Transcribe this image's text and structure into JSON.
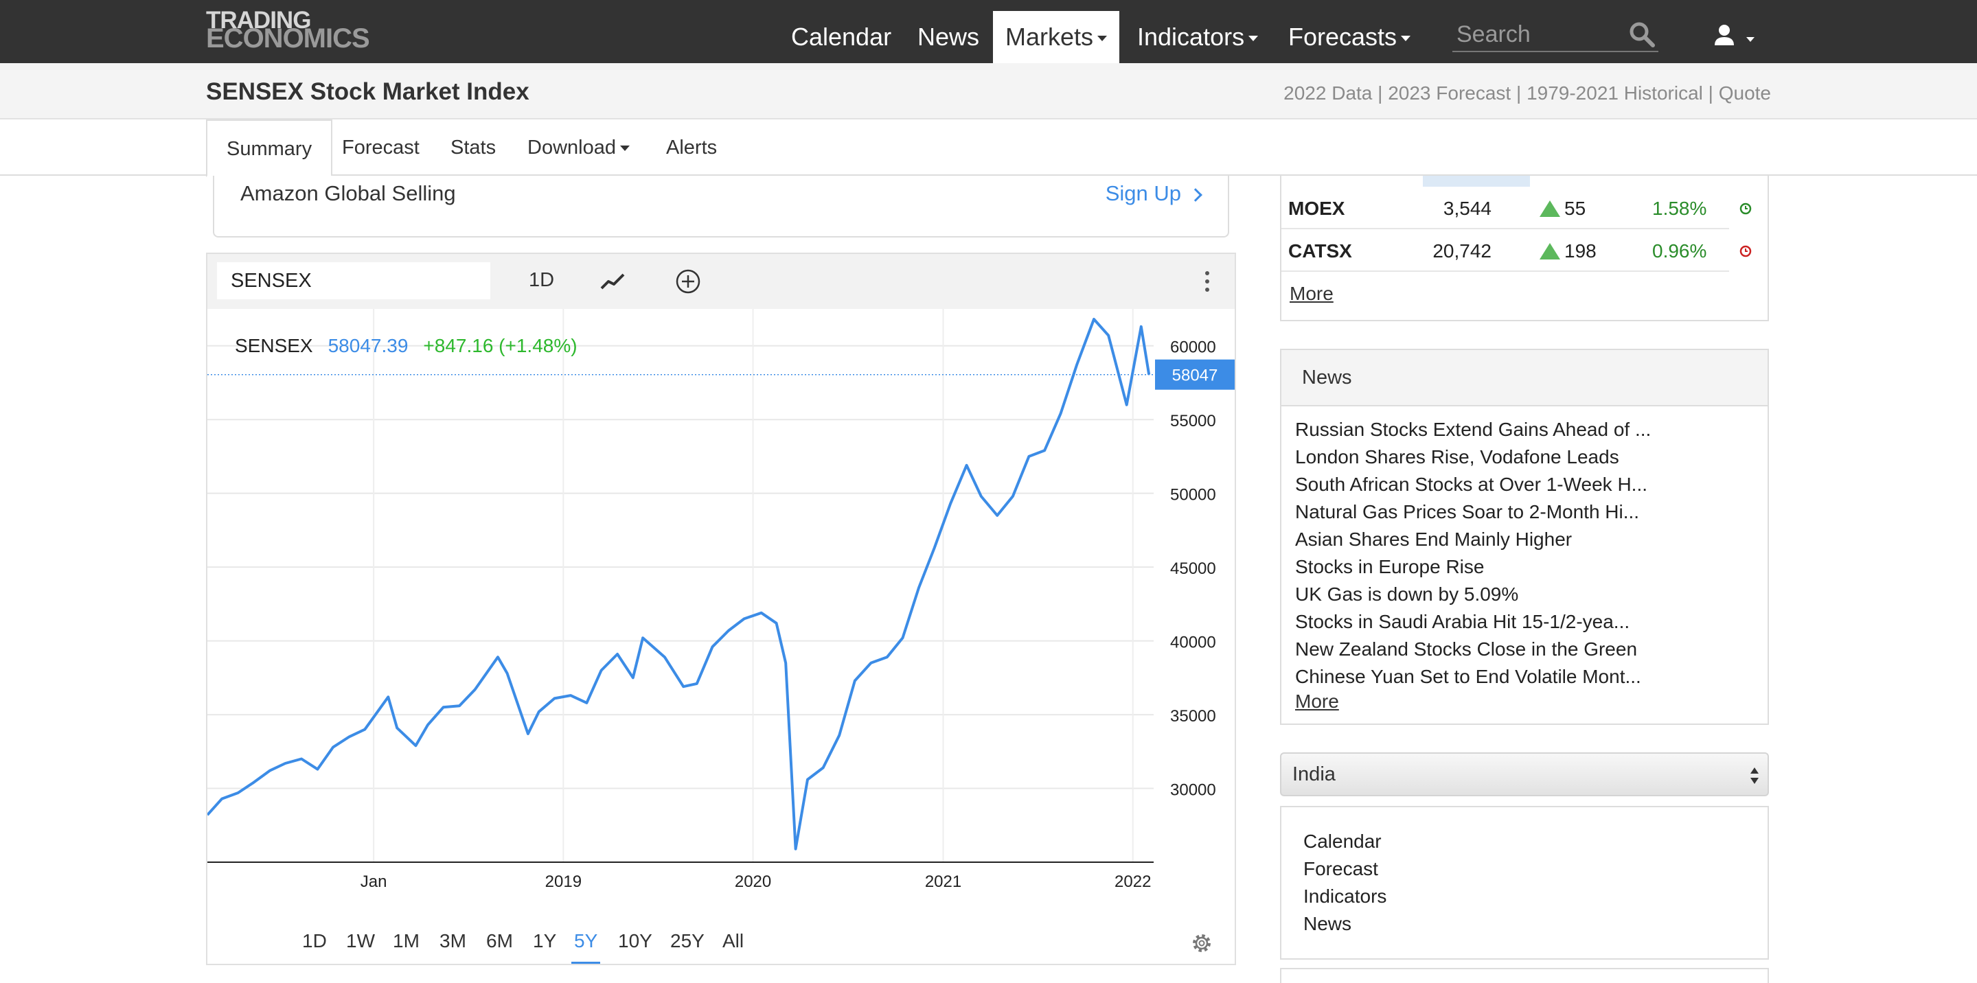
{
  "brand": {
    "line1": "TRADING",
    "line2": "ECONOMICS"
  },
  "nav": {
    "items": [
      {
        "label": "Calendar",
        "dropdown": false,
        "active": false
      },
      {
        "label": "News",
        "dropdown": false,
        "active": false
      },
      {
        "label": "Markets",
        "dropdown": true,
        "active": true
      },
      {
        "label": "Indicators",
        "dropdown": true,
        "active": false
      },
      {
        "label": "Forecasts",
        "dropdown": true,
        "active": false
      }
    ],
    "search_placeholder": "Search",
    "search_icon": "search-icon",
    "user_icon": "user-icon"
  },
  "page": {
    "title": "SENSEX Stock Market Index",
    "quick_links": [
      "2022 Data",
      "2023 Forecast",
      "1979-2021 Historical",
      "Quote"
    ]
  },
  "tabs": [
    {
      "label": "Summary",
      "active": true,
      "dropdown": false
    },
    {
      "label": "Forecast",
      "active": false,
      "dropdown": false
    },
    {
      "label": "Stats",
      "active": false,
      "dropdown": false
    },
    {
      "label": "Download",
      "active": false,
      "dropdown": true
    },
    {
      "label": "Alerts",
      "active": false,
      "dropdown": false
    }
  ],
  "ad": {
    "text": "Amazon Global Selling",
    "cta": "Sign Up"
  },
  "chart_toolbar": {
    "symbol": "SENSEX",
    "period": "1D",
    "line_icon": "line-chart-icon",
    "add_icon": "add-circle-icon",
    "menu_icon": "more-vertical-icon"
  },
  "chart_legend": {
    "symbol": "SENSEX",
    "value": "58047.39",
    "change": "+847.16 (+1.48%)"
  },
  "chart_data": {
    "type": "line",
    "series": [
      {
        "values": [
          [
            "2017-02-15",
            28200
          ],
          [
            "2017-03-15",
            29300
          ],
          [
            "2017-04-15",
            29700
          ],
          [
            "2017-05-15",
            30400
          ],
          [
            "2017-06-15",
            31200
          ],
          [
            "2017-07-15",
            31700
          ],
          [
            "2017-08-15",
            32000
          ],
          [
            "2017-09-15",
            31300
          ],
          [
            "2017-10-15",
            32800
          ],
          [
            "2017-11-15",
            33500
          ],
          [
            "2017-12-15",
            34000
          ],
          [
            "2018-01-29",
            36200
          ],
          [
            "2018-02-15",
            34100
          ],
          [
            "2018-03-23",
            32900
          ],
          [
            "2018-04-15",
            34300
          ],
          [
            "2018-05-15",
            35500
          ],
          [
            "2018-06-15",
            35600
          ],
          [
            "2018-07-15",
            36700
          ],
          [
            "2018-08-28",
            38900
          ],
          [
            "2018-09-15",
            37800
          ],
          [
            "2018-10-25",
            33700
          ],
          [
            "2018-11-15",
            35200
          ],
          [
            "2018-12-15",
            36100
          ],
          [
            "2019-01-15",
            36300
          ],
          [
            "2019-02-15",
            35800
          ],
          [
            "2019-03-15",
            38000
          ],
          [
            "2019-04-15",
            39100
          ],
          [
            "2019-05-15",
            37500
          ],
          [
            "2019-06-03",
            40200
          ],
          [
            "2019-07-15",
            38900
          ],
          [
            "2019-08-20",
            36900
          ],
          [
            "2019-09-15",
            37100
          ],
          [
            "2019-10-15",
            39600
          ],
          [
            "2019-11-15",
            40700
          ],
          [
            "2019-12-15",
            41500
          ],
          [
            "2020-01-17",
            41900
          ],
          [
            "2020-02-15",
            41200
          ],
          [
            "2020-03-04",
            38500
          ],
          [
            "2020-03-23",
            25900
          ],
          [
            "2020-04-15",
            30600
          ],
          [
            "2020-05-15",
            31400
          ],
          [
            "2020-06-15",
            33600
          ],
          [
            "2020-07-15",
            37300
          ],
          [
            "2020-08-15",
            38500
          ],
          [
            "2020-09-15",
            38900
          ],
          [
            "2020-10-15",
            40200
          ],
          [
            "2020-11-15",
            43600
          ],
          [
            "2020-12-15",
            46300
          ],
          [
            "2021-01-15",
            49300
          ],
          [
            "2021-02-15",
            51900
          ],
          [
            "2021-03-15",
            49800
          ],
          [
            "2021-04-15",
            48500
          ],
          [
            "2021-05-15",
            49800
          ],
          [
            "2021-06-15",
            52500
          ],
          [
            "2021-07-15",
            52900
          ],
          [
            "2021-08-15",
            55400
          ],
          [
            "2021-09-15",
            58700
          ],
          [
            "2021-10-18",
            61800
          ],
          [
            "2021-11-15",
            60700
          ],
          [
            "2021-12-20",
            56000
          ],
          [
            "2022-01-17",
            61300
          ],
          [
            "2022-02-01",
            58047
          ]
        ]
      }
    ],
    "x_ticks": [
      "Jan",
      "2019",
      "2020",
      "2021",
      "2022"
    ],
    "y_ticks": [
      30000,
      35000,
      40000,
      45000,
      50000,
      55000,
      60000
    ],
    "ylim": [
      25000,
      62500
    ],
    "xlim": [
      "2017-02-15",
      "2022-02-10"
    ],
    "last_value_label": "58047",
    "grid": true,
    "line_color": "#3c8ce6"
  },
  "range_buttons": [
    {
      "label": "1D",
      "active": false
    },
    {
      "label": "1W",
      "active": false
    },
    {
      "label": "1M",
      "active": false
    },
    {
      "label": "3M",
      "active": false
    },
    {
      "label": "6M",
      "active": false
    },
    {
      "label": "1Y",
      "active": false
    },
    {
      "label": "5Y",
      "active": true
    },
    {
      "label": "10Y",
      "active": false
    },
    {
      "label": "25Y",
      "active": false
    },
    {
      "label": "All",
      "active": false
    }
  ],
  "markets": {
    "rows": [
      {
        "name": "MOEX",
        "price": "3,544",
        "change": "55",
        "percent": "1.58%",
        "status_color": "#2a8c2a"
      },
      {
        "name": "CATSX",
        "price": "20,742",
        "change": "198",
        "percent": "0.96%",
        "status_color": "#cc2222"
      }
    ],
    "more": "More"
  },
  "news": {
    "header": "News",
    "items": [
      "Russian Stocks Extend Gains Ahead of ...",
      "London Shares Rise, Vodafone Leads",
      "South African Stocks at Over 1-Week H...",
      "Natural Gas Prices Soar to 2-Month Hi...",
      "Asian Shares End Mainly Higher",
      "Stocks in Europe Rise",
      "UK Gas is down by 5.09%",
      "Stocks in Saudi Arabia Hit 15-1/2-yea...",
      "New Zealand Stocks Close in the Green",
      "Chinese Yuan Set to End Volatile Mont..."
    ],
    "more": "More"
  },
  "country": {
    "selected": "India"
  },
  "country_links": [
    "Calendar",
    "Forecast",
    "Indicators",
    "News"
  ]
}
